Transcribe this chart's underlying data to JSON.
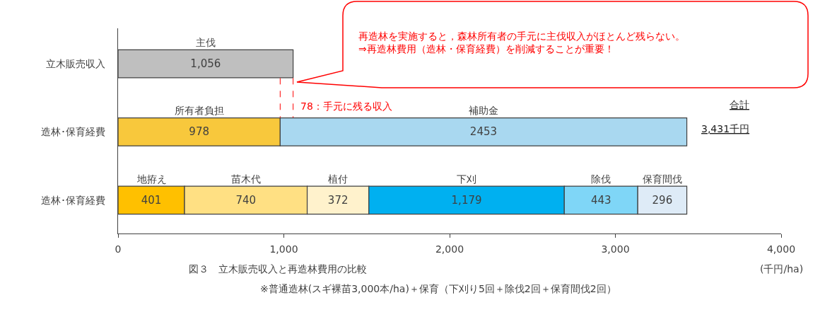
{
  "chart_data": {
    "type": "bar",
    "orientation": "horizontal",
    "stacked": true,
    "title": "図３　立木販売収入と再造林費用の比較",
    "xlabel": "(千円/ha)",
    "categories": [
      "立木販売収入",
      "造林･保育経費",
      "造林･保育経費"
    ],
    "series": [
      {
        "name": "主伐",
        "color": "#bfbfbf",
        "values": [
          1056,
          null,
          null
        ],
        "value_labels": [
          "1,056",
          null,
          null
        ]
      },
      {
        "name": "所有者負担",
        "color": "#f8c83c",
        "values": [
          null,
          978,
          null
        ],
        "value_labels": [
          null,
          "978",
          null
        ]
      },
      {
        "name": "補助金",
        "color": "#a9d8f0",
        "values": [
          null,
          2453,
          null
        ],
        "value_labels": [
          null,
          "2453",
          null
        ]
      },
      {
        "name": "地拵え",
        "color": "#ffc000",
        "values": [
          null,
          null,
          401
        ],
        "value_labels": [
          null,
          null,
          "401"
        ]
      },
      {
        "name": "苗木代",
        "color": "#ffe083",
        "values": [
          null,
          null,
          740
        ],
        "value_labels": [
          null,
          null,
          "740"
        ]
      },
      {
        "name": "植付",
        "color": "#fff2cc",
        "values": [
          null,
          null,
          372
        ],
        "value_labels": [
          null,
          null,
          "372"
        ]
      },
      {
        "name": "下刈",
        "color": "#00b0f0",
        "values": [
          null,
          null,
          1179
        ],
        "value_labels": [
          null,
          null,
          "1,179"
        ]
      },
      {
        "name": "除伐",
        "color": "#7fd6f7",
        "values": [
          null,
          null,
          443
        ],
        "value_labels": [
          null,
          null,
          "443"
        ]
      },
      {
        "name": "保育間伐",
        "color": "#deebf7",
        "values": [
          null,
          null,
          296
        ],
        "value_labels": [
          null,
          null,
          "296"
        ]
      }
    ],
    "xlim": [
      0,
      4000
    ],
    "xticks": [
      0,
      {
        "value": 1000,
        "label": "1,000"
      },
      {
        "value": 2000,
        "label": "2,000"
      },
      {
        "value": 3000,
        "label": "3,000"
      },
      {
        "value": 4000,
        "label": "4,000"
      }
    ],
    "ref_lines": [
      {
        "axis": "x",
        "value": 978,
        "color": "#ff0000",
        "line_style": "dashed"
      },
      {
        "axis": "x",
        "value": 1056,
        "color": "#ff0000",
        "line_style": "dashed"
      }
    ],
    "annotations": [
      "再造林を実施すると，森林所有者の手元に主伐収入がほとんど残らない。\n⇒再造林費用（造林・保育経費）を削減することが重要！",
      {
        "text": "78：手元に残る収入",
        "x": 1056
      },
      "合計",
      "3,431千円",
      "※普通造林(スギ裸苗3,000本/ha)＋保育（下刈り5回＋除伐2回＋保育間伐2回）"
    ]
  }
}
